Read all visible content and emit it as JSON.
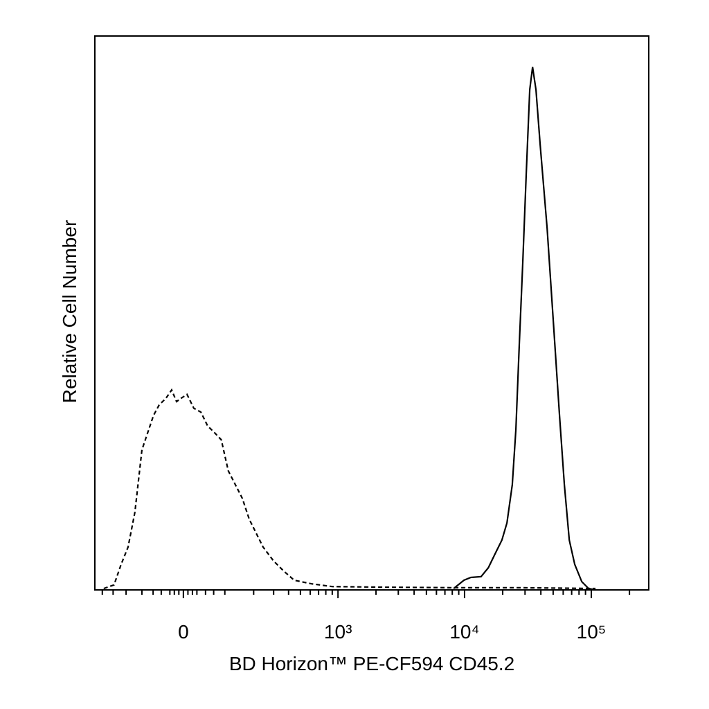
{
  "chart_data": {
    "type": "line",
    "xlabel": "BD Horizon™ PE-CF594 CD45.2",
    "ylabel": "Relative Cell Number",
    "xscale": "biexponential",
    "xlim": [
      -290,
      284000
    ],
    "xticks": [
      0,
      {
        "value": 1000,
        "label": "10³"
      },
      {
        "value": 10000,
        "label": "10⁴"
      },
      {
        "value": 100000,
        "label": "10⁵"
      }
    ],
    "xminorticks": [
      -250,
      -200,
      -150,
      -100,
      -70,
      -50,
      -30,
      -20,
      -10,
      10,
      20,
      30,
      50,
      70,
      100,
      200,
      300,
      400,
      500,
      600,
      700,
      800,
      900,
      2000,
      3000,
      4000,
      5000,
      6000,
      7000,
      8000,
      9000,
      20000,
      30000,
      40000,
      50000,
      60000,
      70000,
      80000,
      90000,
      200000
    ],
    "ylim": [
      0,
      100
    ],
    "series": [
      {
        "color": "#000000",
        "style": "dashed",
        "x": [
          -243,
          -196,
          -168,
          -143,
          -121,
          -100,
          -81,
          -69,
          -55,
          -39,
          -26,
          -15,
          -5,
          8,
          23,
          39,
          55,
          72,
          90,
          110,
          132,
          156,
          182,
          211,
          243,
          299,
          365,
          445,
          615,
          899,
          2180,
          7680,
          27000,
          108000
        ],
        "values": [
          0.25,
          0.9,
          4.6,
          7.75,
          14,
          25.3,
          29,
          31.5,
          33.4,
          34.6,
          36.1,
          34,
          34.6,
          35.3,
          32.8,
          32.1,
          29.6,
          28.4,
          27.1,
          21.5,
          19,
          16.5,
          12.75,
          10.25,
          7.75,
          5.25,
          3.4,
          1.75,
          1.1,
          0.6,
          0.5,
          0.4,
          0.4,
          0.25
        ]
      },
      {
        "color": "#000000",
        "style": "solid",
        "x": [
          8200,
          9900,
          11200,
          13500,
          15400,
          17400,
          19700,
          21600,
          23800,
          25400,
          27000,
          28800,
          30700,
          32700,
          34400,
          36600,
          39500,
          44800,
          50800,
          56100,
          61300,
          67000,
          74000,
          84000,
          95200,
          108000
        ],
        "values": [
          0.25,
          1.75,
          2.25,
          2.4,
          4,
          6.5,
          9,
          12.1,
          19,
          29,
          44,
          59,
          75.3,
          90.3,
          94.4,
          90.3,
          80.3,
          65.3,
          46.5,
          31.5,
          19,
          9,
          4.6,
          1.5,
          0.25,
          0
        ]
      }
    ]
  }
}
